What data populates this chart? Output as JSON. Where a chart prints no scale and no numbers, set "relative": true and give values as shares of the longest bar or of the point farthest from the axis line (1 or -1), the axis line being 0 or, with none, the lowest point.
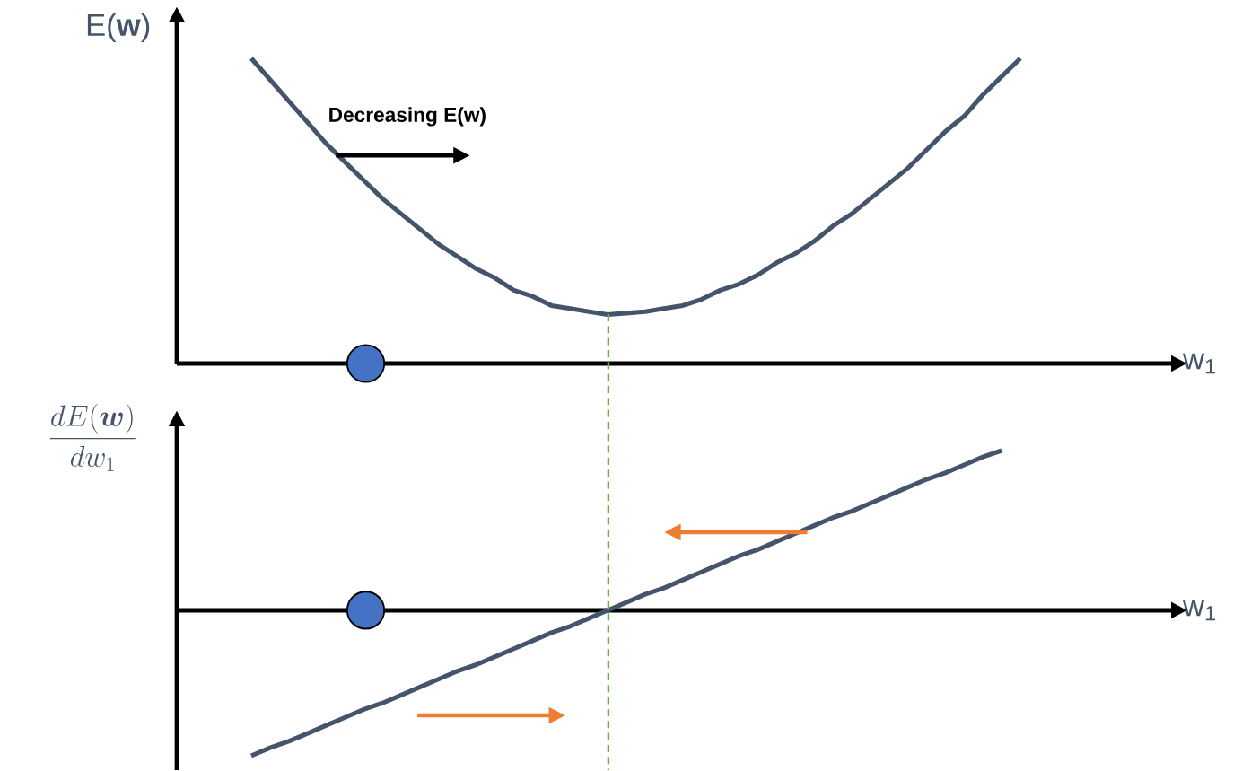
{
  "chart_data": [
    {
      "type": "line",
      "ylabel": "E(**w**)",
      "xlabel": "w$_{1}$",
      "relative": true,
      "categories": [
        null,
        null,
        null,
        null,
        null,
        null,
        null,
        null,
        null,
        null,
        null,
        null,
        null,
        null,
        null,
        null,
        null,
        null,
        null,
        null,
        null,
        null,
        null,
        null,
        null,
        null,
        null,
        null,
        null,
        null,
        null,
        null,
        null,
        null,
        null,
        null,
        null,
        null,
        null,
        null,
        null,
        null
      ],
      "series": [
        {
          "color": "#44546a",
          "values": [
            1.0,
            0.93,
            0.86,
            0.79,
            0.72,
            0.66,
            0.6,
            0.54,
            0.49,
            0.44,
            0.39,
            0.35,
            0.31,
            0.28,
            0.24,
            0.22,
            0.19,
            0.18,
            0.17,
            0.16,
            0.165,
            0.17,
            0.18,
            0.19,
            0.21,
            0.24,
            0.26,
            0.29,
            0.33,
            0.36,
            0.4,
            0.45,
            0.49,
            0.54,
            0.59,
            0.64,
            0.7,
            0.76,
            0.81,
            0.88,
            0.94,
            1.0
          ]
        }
      ],
      "annotations": [
        "Decreasing E(w)"
      ]
    },
    {
      "type": "line",
      "ylabel": "\\frac{dE(\\boldsymbol{w})}{dw_{1}}",
      "xlabel": "w$_{1}$",
      "relative": true,
      "categories": [
        null,
        null,
        null,
        null,
        null,
        null,
        null,
        null,
        null,
        null,
        null,
        null,
        null,
        null,
        null,
        null,
        null,
        null,
        null,
        null,
        null,
        null,
        null,
        null,
        null,
        null,
        null,
        null,
        null,
        null,
        null,
        null,
        null,
        null,
        null,
        null,
        null,
        null,
        null,
        null,
        null
      ],
      "series": [
        {
          "color": "#44546a",
          "values": [
            -0.91,
            -0.86,
            -0.82,
            -0.77,
            -0.72,
            -0.67,
            -0.62,
            -0.58,
            -0.53,
            -0.48,
            -0.43,
            -0.38,
            -0.34,
            -0.29,
            -0.24,
            -0.19,
            -0.14,
            -0.1,
            -0.05,
            0,
            0.05,
            0.1,
            0.14,
            0.19,
            0.24,
            0.29,
            0.34,
            0.38,
            0.43,
            0.48,
            0.53,
            0.58,
            0.62,
            0.67,
            0.72,
            0.77,
            0.82,
            0.86,
            0.91,
            0.96,
            1.0
          ]
        }
      ]
    }
  ]
}
